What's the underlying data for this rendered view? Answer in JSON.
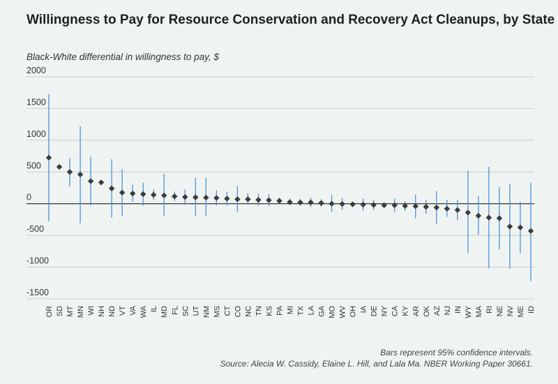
{
  "chart_data": {
    "type": "scatter",
    "title": "Willingness to Pay for Resource Conservation and Recovery Act Cleanups, by State",
    "ylabel": "Black-White differential in willingness to pay, $",
    "xlabel": "",
    "ylim": [
      -1500,
      2000
    ],
    "yticks": [
      2000,
      1500,
      1000,
      500,
      0,
      -500,
      -1000,
      -1500
    ],
    "ytick_labels": [
      "2000",
      "1500",
      "1000",
      "500",
      "0",
      "-500",
      "-1000",
      "-1500"
    ],
    "grid": true,
    "colors": {
      "marker": "#3b3b3b",
      "ci": "#4a90d9",
      "grid": "#c9cdcc",
      "zero": "#333333"
    },
    "series": [
      {
        "state": "OR",
        "estimate": 725,
        "ci_low": -280,
        "ci_high": 1730
      },
      {
        "state": "SD",
        "estimate": 580,
        "ci_low": 580,
        "ci_high": 580
      },
      {
        "state": "MT",
        "estimate": 500,
        "ci_low": 270,
        "ci_high": 720
      },
      {
        "state": "MN",
        "estimate": 460,
        "ci_low": -310,
        "ci_high": 1220
      },
      {
        "state": "WI",
        "estimate": 355,
        "ci_low": -30,
        "ci_high": 740
      },
      {
        "state": "NH",
        "estimate": 335,
        "ci_low": 335,
        "ci_high": 335
      },
      {
        "state": "ND",
        "estimate": 240,
        "ci_low": -220,
        "ci_high": 700
      },
      {
        "state": "VT",
        "estimate": 175,
        "ci_low": -190,
        "ci_high": 545
      },
      {
        "state": "VA",
        "estimate": 160,
        "ci_low": 30,
        "ci_high": 300
      },
      {
        "state": "WA",
        "estimate": 150,
        "ci_low": -30,
        "ci_high": 330
      },
      {
        "state": "IL",
        "estimate": 140,
        "ci_low": 60,
        "ci_high": 225
      },
      {
        "state": "MD",
        "estimate": 130,
        "ci_low": -200,
        "ci_high": 470
      },
      {
        "state": "FL",
        "estimate": 115,
        "ci_low": 40,
        "ci_high": 190
      },
      {
        "state": "SC",
        "estimate": 105,
        "ci_low": -20,
        "ci_high": 225
      },
      {
        "state": "UT",
        "estimate": 100,
        "ci_low": -200,
        "ci_high": 410
      },
      {
        "state": "NM",
        "estimate": 95,
        "ci_low": -200,
        "ci_high": 405
      },
      {
        "state": "MS",
        "estimate": 90,
        "ci_low": -30,
        "ci_high": 210
      },
      {
        "state": "CT",
        "estimate": 80,
        "ci_low": -30,
        "ci_high": 190
      },
      {
        "state": "CO",
        "estimate": 70,
        "ci_low": -130,
        "ci_high": 280
      },
      {
        "state": "NC",
        "estimate": 70,
        "ci_low": -20,
        "ci_high": 165
      },
      {
        "state": "TN",
        "estimate": 60,
        "ci_low": -30,
        "ci_high": 155
      },
      {
        "state": "KS",
        "estimate": 55,
        "ci_low": -40,
        "ci_high": 150
      },
      {
        "state": "PA",
        "estimate": 45,
        "ci_low": 10,
        "ci_high": 80
      },
      {
        "state": "MI",
        "estimate": 25,
        "ci_low": -25,
        "ci_high": 80
      },
      {
        "state": "TX",
        "estimate": 20,
        "ci_low": -30,
        "ci_high": 75
      },
      {
        "state": "LA",
        "estimate": 20,
        "ci_low": -50,
        "ci_high": 95
      },
      {
        "state": "GA",
        "estimate": 10,
        "ci_low": -50,
        "ci_high": 70
      },
      {
        "state": "MO",
        "estimate": 0,
        "ci_low": -130,
        "ci_high": 140
      },
      {
        "state": "WV",
        "estimate": -5,
        "ci_low": -100,
        "ci_high": 90
      },
      {
        "state": "OH",
        "estimate": -10,
        "ci_low": -40,
        "ci_high": 20
      },
      {
        "state": "IA",
        "estimate": -15,
        "ci_low": -110,
        "ci_high": 80
      },
      {
        "state": "DE",
        "estimate": -20,
        "ci_low": -100,
        "ci_high": 60
      },
      {
        "state": "NY",
        "estimate": -25,
        "ci_low": -60,
        "ci_high": 10
      },
      {
        "state": "CA",
        "estimate": -25,
        "ci_low": -130,
        "ci_high": 80
      },
      {
        "state": "KY",
        "estimate": -35,
        "ci_low": -110,
        "ci_high": 40
      },
      {
        "state": "AR",
        "estimate": -40,
        "ci_low": -230,
        "ci_high": 140
      },
      {
        "state": "OK",
        "estimate": -50,
        "ci_low": -160,
        "ci_high": 60
      },
      {
        "state": "AZ",
        "estimate": -60,
        "ci_low": -320,
        "ci_high": 200
      },
      {
        "state": "NJ",
        "estimate": -80,
        "ci_low": -210,
        "ci_high": 60
      },
      {
        "state": "IN",
        "estimate": -100,
        "ci_low": -260,
        "ci_high": 60
      },
      {
        "state": "WY",
        "estimate": -140,
        "ci_low": -780,
        "ci_high": 520
      },
      {
        "state": "MA",
        "estimate": -190,
        "ci_low": -490,
        "ci_high": 120
      },
      {
        "state": "RI",
        "estimate": -220,
        "ci_low": -1020,
        "ci_high": 580
      },
      {
        "state": "NE",
        "estimate": -230,
        "ci_low": -720,
        "ci_high": 260
      },
      {
        "state": "NV",
        "estimate": -360,
        "ci_low": -1030,
        "ci_high": 310
      },
      {
        "state": "ME",
        "estimate": -375,
        "ci_low": -780,
        "ci_high": 30
      },
      {
        "state": "ID",
        "estimate": -430,
        "ci_low": -1220,
        "ci_high": 330
      }
    ]
  },
  "notes": {
    "ci_note": "Bars represent 95% confidence intervals.",
    "source": "Source: Alecia W. Cassidy, Elaine L. Hill, and Lala Ma. NBER Working Paper 30661."
  }
}
